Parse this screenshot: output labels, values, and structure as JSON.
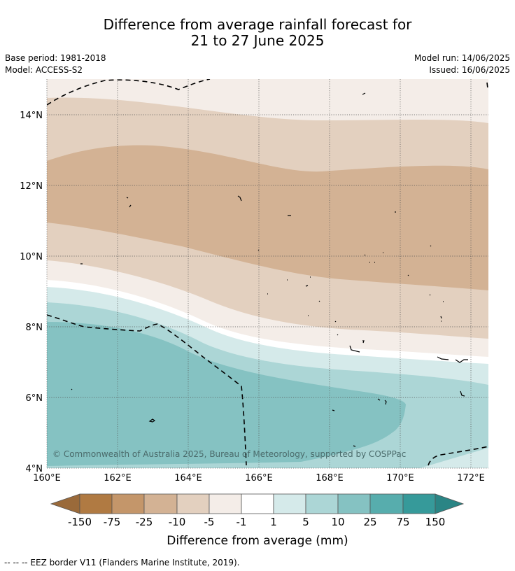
{
  "title_line1": "Difference from average rainfall forecast for",
  "title_line2": "21 to 27 June 2025",
  "base_period": "Base period: 1981-2018",
  "model": "Model: ACCESS-S2",
  "model_run": "Model run: 14/06/2025",
  "issued": "Issued: 16/06/2025",
  "copyright": "© Commonwealth of Australia 2025, Bureau of Meteorology, supported by COSPPac",
  "colorbar_title": "Difference from average (mm)",
  "footer_note": "--  --  -- EEZ border V11 (Flanders Marine Institute, 2019).",
  "map": {
    "lon_range": [
      160,
      172.5
    ],
    "lat_range": [
      4,
      15
    ],
    "lon_ticks": [
      "160°E",
      "162°E",
      "164°E",
      "166°E",
      "168°E",
      "170°E",
      "172°E"
    ],
    "lat_ticks": [
      "14°N",
      "12°N",
      "10°N",
      "8°N",
      "6°N",
      "4°N"
    ],
    "gridlines": true
  },
  "colorbar": {
    "tick_labels": [
      "-150",
      "-75",
      "-25",
      "-10",
      "-5",
      "-1",
      "1",
      "5",
      "10",
      "25",
      "75",
      "150"
    ],
    "colors": [
      "#9a6a3a",
      "#b07a42",
      "#c4966a",
      "#d3b294",
      "#e3d0bf",
      "#f4ede8",
      "#ffffff",
      "#d5eaea",
      "#acd6d6",
      "#85c2c2",
      "#57adad",
      "#369a9a",
      "#2a8585"
    ]
  }
}
